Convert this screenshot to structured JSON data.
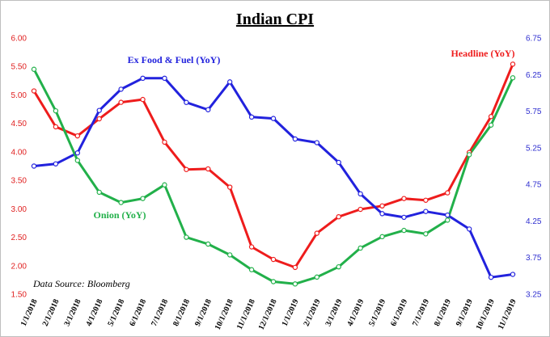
{
  "chart_data": {
    "type": "line",
    "title": "Indian CPI",
    "source": "Data Source: Bloomberg",
    "x": [
      "1/1/2018",
      "2/1/2018",
      "3/1/2018",
      "4/1/2018",
      "5/1/2018",
      "6/1/2018",
      "7/1/2018",
      "8/1/2018",
      "9/1/2018",
      "10/1/2018",
      "11/1/2018",
      "12/1/2018",
      "1/1/2019",
      "2/1/2019",
      "3/1/2019",
      "4/1/2019",
      "5/1/2019",
      "6/1/2019",
      "7/1/2019",
      "8/1/2019",
      "9/1/2019",
      "10/1/2019",
      "11/1/2019"
    ],
    "y_left": {
      "min": 1.5,
      "max": 6.0,
      "ticks": [
        "1.50",
        "2.00",
        "2.50",
        "3.00",
        "3.50",
        "4.00",
        "4.50",
        "5.00",
        "5.50",
        "6.00"
      ]
    },
    "y_right": {
      "min": 3.25,
      "max": 6.75,
      "ticks": [
        "3.25",
        "3.75",
        "4.25",
        "4.75",
        "5.25",
        "5.75",
        "6.25",
        "6.75"
      ]
    },
    "series": [
      {
        "name": "Headline (YoY)",
        "axis": "left",
        "color": "#ee1c1c",
        "values": [
          5.07,
          4.44,
          4.28,
          4.58,
          4.87,
          4.92,
          4.17,
          3.69,
          3.7,
          3.38,
          2.33,
          2.11,
          1.97,
          2.57,
          2.86,
          2.99,
          3.05,
          3.18,
          3.15,
          3.28,
          3.99,
          4.62,
          5.54
        ]
      },
      {
        "name": "Ex Food & Fuel (YoY)",
        "axis": "right",
        "color": "#2222dd",
        "values": [
          5.0,
          5.03,
          5.18,
          5.76,
          6.05,
          6.2,
          6.2,
          5.87,
          5.77,
          6.15,
          5.67,
          5.65,
          5.37,
          5.32,
          5.05,
          4.62,
          4.35,
          4.3,
          4.38,
          4.33,
          4.14,
          3.48,
          3.52
        ]
      },
      {
        "name": "Onion (YoY)",
        "axis": "left",
        "color": "#22b04a",
        "values": [
          5.45,
          4.72,
          3.85,
          3.29,
          3.11,
          3.18,
          3.42,
          2.5,
          2.38,
          2.19,
          1.93,
          1.72,
          1.68,
          1.8,
          1.98,
          2.31,
          2.51,
          2.62,
          2.56,
          2.8,
          3.95,
          4.47,
          5.3
        ]
      }
    ],
    "grid": false,
    "legend": "inline labels"
  }
}
